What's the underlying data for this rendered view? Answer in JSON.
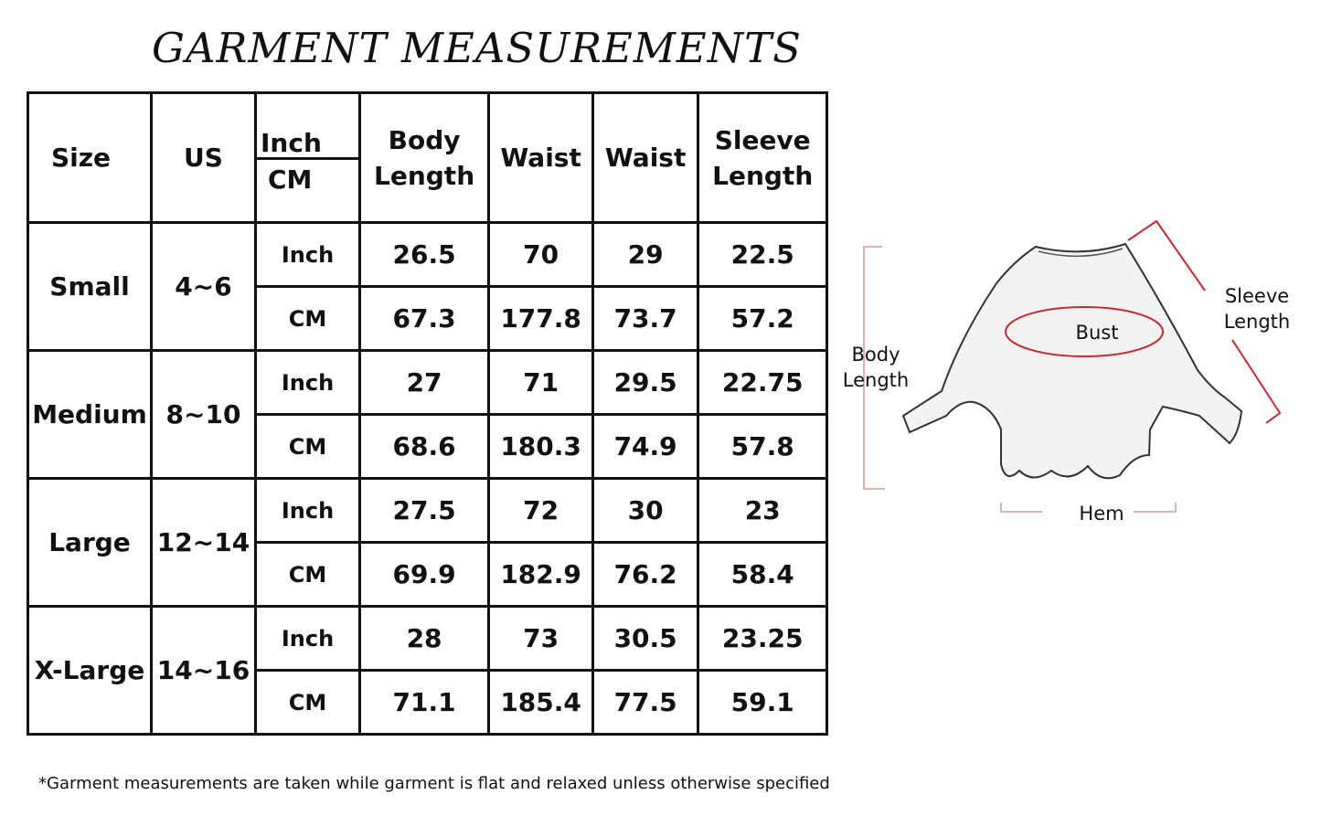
{
  "title": "GARMENT MEASUREMENTS",
  "table": {
    "headers": {
      "size": "Size",
      "us": "US",
      "inch": "Inch",
      "cm": "CM",
      "body_length": "Body Length",
      "waist1": "Waist",
      "waist2": "Waist",
      "sleeve_length": "Sleeve Length"
    },
    "rows": [
      {
        "size": "Small",
        "us": "4~6",
        "inch": {
          "unit": "Inch",
          "values": [
            "26.5",
            "70",
            "29",
            "22.5"
          ]
        },
        "cm": {
          "unit": "CM",
          "values": [
            "67.3",
            "177.8",
            "73.7",
            "57.2"
          ]
        }
      },
      {
        "size": "Medium",
        "us": "8~10",
        "inch": {
          "unit": "Inch",
          "values": [
            "27",
            "71",
            "29.5",
            "22.75"
          ]
        },
        "cm": {
          "unit": "CM",
          "values": [
            "68.6",
            "180.3",
            "74.9",
            "57.8"
          ]
        }
      },
      {
        "size": "Large",
        "us": "12~14",
        "inch": {
          "unit": "Inch",
          "values": [
            "27.5",
            "72",
            "30",
            "23"
          ]
        },
        "cm": {
          "unit": "CM",
          "values": [
            "69.9",
            "182.9",
            "76.2",
            "58.4"
          ]
        }
      },
      {
        "size": "X-Large",
        "us": "14~16",
        "inch": {
          "unit": "Inch",
          "values": [
            "28",
            "73",
            "30.5",
            "23.25"
          ]
        },
        "cm": {
          "unit": "CM",
          "values": [
            "71.1",
            "185.4",
            "77.5",
            "59.1"
          ]
        }
      }
    ]
  },
  "diagram": {
    "body_length": "Body Length",
    "bust": "Bust",
    "sleeve_length": "Sleeve Length",
    "hem": "Hem",
    "accent_color": "#c62a2f"
  },
  "note": "*Garment measurements are taken while garment is flat and relaxed unless otherwise specified"
}
